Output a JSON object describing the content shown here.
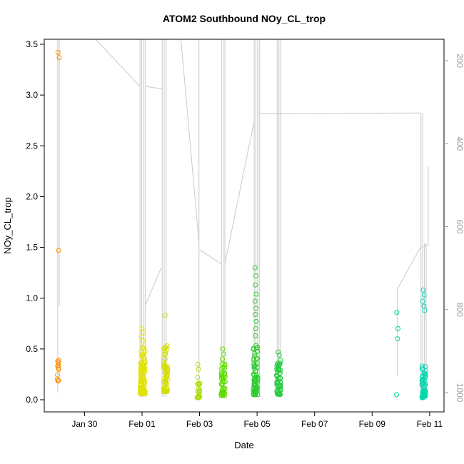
{
  "chart_data": {
    "type": "scatter",
    "title": "ATOM2 Southbound NOy_CL_trop",
    "xlabel": "Date",
    "ylabel": "NOy_CL_trop",
    "x_axis": {
      "tick_labels": [
        "Jan 30",
        "Feb 01",
        "Feb 03",
        "Feb 05",
        "Feb 07",
        "Feb 09",
        "Feb 11"
      ],
      "tick_positions_days": [
        1,
        3,
        5,
        7,
        9,
        11,
        13
      ],
      "domain_days": [
        -0.4,
        13.5
      ],
      "day_zero": "Jan 29"
    },
    "y_axis": {
      "tick_labels": [
        "0.0",
        "0.5",
        "1.0",
        "1.5",
        "2.0",
        "2.5",
        "3.0",
        "3.5"
      ],
      "tick_values": [
        0,
        0.5,
        1,
        1.5,
        2,
        2.5,
        3,
        3.5
      ]
    },
    "y2_axis": {
      "tick_labels": [
        "200",
        "400",
        "600",
        "800",
        "1000"
      ],
      "tick_values": [
        200,
        400,
        600,
        800,
        1000
      ],
      "reversed": true,
      "color": "#9e9e9e"
    },
    "pressure_trace": {
      "color": "#c9c9c9",
      "lines": [
        [
          [
            0.07,
            150
          ],
          [
            0.07,
            1000
          ]
        ],
        [
          [
            0.12,
            150
          ],
          [
            0.12,
            790
          ]
        ],
        [
          [
            1.35,
            146
          ],
          [
            2.93,
            262
          ]
        ],
        [
          [
            2.93,
            146
          ],
          [
            2.93,
            1010
          ]
        ],
        [
          [
            2.99,
            146
          ],
          [
            2.99,
            1010
          ]
        ],
        [
          [
            3.05,
            146
          ],
          [
            3.05,
            1010
          ]
        ],
        [
          [
            3.11,
            146
          ],
          [
            3.11,
            1010
          ]
        ],
        [
          [
            3.11,
            262
          ],
          [
            3.7,
            268
          ]
        ],
        [
          [
            3.11,
            790
          ],
          [
            3.66,
            700
          ]
        ],
        [
          [
            3.7,
            146
          ],
          [
            3.7,
            1010
          ]
        ],
        [
          [
            3.77,
            146
          ],
          [
            3.77,
            1010
          ]
        ],
        [
          [
            3.84,
            146
          ],
          [
            3.84,
            1010
          ]
        ],
        [
          [
            4.35,
            146
          ],
          [
            4.98,
            640
          ]
        ],
        [
          [
            4.98,
            146
          ],
          [
            4.98,
            1010
          ]
        ],
        [
          [
            4.98,
            655
          ],
          [
            5.76,
            690
          ]
        ],
        [
          [
            5.76,
            146
          ],
          [
            5.76,
            1010
          ]
        ],
        [
          [
            5.82,
            146
          ],
          [
            5.82,
            1010
          ]
        ],
        [
          [
            5.88,
            146
          ],
          [
            5.88,
            1010
          ]
        ],
        [
          [
            5.88,
            690
          ],
          [
            6.9,
            345
          ]
        ],
        [
          [
            6.9,
            146
          ],
          [
            6.9,
            1010
          ]
        ],
        [
          [
            6.96,
            146
          ],
          [
            6.96,
            1010
          ]
        ],
        [
          [
            7.02,
            146
          ],
          [
            7.02,
            1010
          ]
        ],
        [
          [
            7.08,
            146
          ],
          [
            7.08,
            1010
          ]
        ],
        [
          [
            7.1,
            328
          ],
          [
            12.7,
            326
          ]
        ],
        [
          [
            7.7,
            146
          ],
          [
            7.7,
            1010
          ]
        ],
        [
          [
            7.76,
            146
          ],
          [
            7.76,
            1010
          ]
        ],
        [
          [
            7.82,
            146
          ],
          [
            7.82,
            1010
          ]
        ],
        [
          [
            11.88,
            750
          ],
          [
            11.88,
            960
          ]
        ],
        [
          [
            11.88,
            750
          ],
          [
            12.68,
            650
          ]
        ],
        [
          [
            12.7,
            326
          ],
          [
            12.7,
            1005
          ]
        ],
        [
          [
            12.76,
            326
          ],
          [
            12.76,
            1005
          ]
        ],
        [
          [
            12.82,
            640
          ],
          [
            12.82,
            1005
          ]
        ],
        [
          [
            12.88,
            640
          ],
          [
            12.88,
            1005
          ]
        ],
        [
          [
            12.68,
            650
          ],
          [
            12.95,
            645
          ],
          [
            12.95,
            455
          ]
        ]
      ]
    },
    "scatter": {
      "marker": "open-circle",
      "radius": 3,
      "clusters": [
        {
          "cx": 0.1,
          "xspread": 0.045,
          "count": 10,
          "ymin": 0.18,
          "ymax": 0.4,
          "yexp": 1.4,
          "color": "#FF8C00",
          "seed": 101
        },
        {
          "cx": 3.02,
          "xspread": 0.09,
          "count": 85,
          "ymin": 0.06,
          "ymax": 0.52,
          "yexp": 2.2,
          "color": "#E2E200",
          "seed": 102
        },
        {
          "cx": 3.82,
          "xspread": 0.08,
          "count": 65,
          "ymin": 0.08,
          "ymax": 0.55,
          "yexp": 2.0,
          "color": "#D6DE00",
          "seed": 103
        },
        {
          "cx": 4.95,
          "xspread": 0.06,
          "count": 18,
          "ymin": 0.02,
          "ymax": 0.17,
          "yexp": 1.6,
          "color": "#AADF00",
          "seed": 104
        },
        {
          "cx": 5.82,
          "xspread": 0.07,
          "count": 48,
          "ymin": 0.04,
          "ymax": 0.36,
          "yexp": 2.0,
          "color": "#5FDC00",
          "seed": 105
        },
        {
          "cx": 6.95,
          "xspread": 0.08,
          "count": 80,
          "ymin": 0.05,
          "ymax": 0.55,
          "yexp": 2.2,
          "color": "#2FCC2F",
          "seed": 106
        },
        {
          "cx": 7.75,
          "xspread": 0.07,
          "count": 60,
          "ymin": 0.05,
          "ymax": 0.42,
          "yexp": 2.0,
          "color": "#29CC45",
          "seed": 107
        },
        {
          "cx": 12.8,
          "xspread": 0.07,
          "count": 60,
          "ymin": 0.02,
          "ymax": 0.33,
          "yexp": 2.0,
          "color": "#00D7AD",
          "seed": 108
        }
      ],
      "points": [
        {
          "x": 0.08,
          "y": 3.42,
          "color": "#FF8C00"
        },
        {
          "x": 0.12,
          "y": 3.37,
          "color": "#FF8C00"
        },
        {
          "x": 0.1,
          "y": 1.47,
          "color": "#FF8C00"
        },
        {
          "x": 0.07,
          "y": 0.38,
          "color": "#FF8C00"
        },
        {
          "x": 3.0,
          "y": 0.7,
          "color": "#E2E200"
        },
        {
          "x": 3.04,
          "y": 0.66,
          "color": "#E2E200"
        },
        {
          "x": 2.98,
          "y": 0.62,
          "color": "#E2E200"
        },
        {
          "x": 3.03,
          "y": 0.58,
          "color": "#E2E200"
        },
        {
          "x": 3.8,
          "y": 0.83,
          "color": "#D6DE00"
        },
        {
          "x": 4.94,
          "y": 0.35,
          "color": "#AADF00"
        },
        {
          "x": 4.97,
          "y": 0.3,
          "color": "#AADF00"
        },
        {
          "x": 4.93,
          "y": 0.22,
          "color": "#AADF00"
        },
        {
          "x": 5.8,
          "y": 0.5,
          "color": "#5FDC00"
        },
        {
          "x": 5.84,
          "y": 0.45,
          "color": "#5FDC00"
        },
        {
          "x": 5.79,
          "y": 0.4,
          "color": "#5FDC00"
        },
        {
          "x": 6.93,
          "y": 1.3,
          "color": "#2FCC2F"
        },
        {
          "x": 6.96,
          "y": 1.22,
          "color": "#2FCC2F"
        },
        {
          "x": 6.94,
          "y": 1.13,
          "color": "#2FCC2F"
        },
        {
          "x": 6.97,
          "y": 1.04,
          "color": "#2FCC2F"
        },
        {
          "x": 6.93,
          "y": 0.97,
          "color": "#2FCC2F"
        },
        {
          "x": 6.96,
          "y": 0.9,
          "color": "#2FCC2F"
        },
        {
          "x": 6.94,
          "y": 0.84,
          "color": "#2FCC2F"
        },
        {
          "x": 6.97,
          "y": 0.77,
          "color": "#2FCC2F"
        },
        {
          "x": 6.95,
          "y": 0.7,
          "color": "#2FCC2F"
        },
        {
          "x": 6.94,
          "y": 0.63,
          "color": "#2FCC2F"
        },
        {
          "x": 7.73,
          "y": 0.47,
          "color": "#29CC45"
        },
        {
          "x": 7.77,
          "y": 0.44,
          "color": "#29CC45"
        },
        {
          "x": 11.86,
          "y": 0.86,
          "color": "#00D796"
        },
        {
          "x": 11.9,
          "y": 0.7,
          "color": "#00D796"
        },
        {
          "x": 11.88,
          "y": 0.6,
          "color": "#00D796"
        },
        {
          "x": 11.85,
          "y": 0.05,
          "color": "#00D796"
        },
        {
          "x": 12.78,
          "y": 1.08,
          "color": "#00D7AD"
        },
        {
          "x": 12.81,
          "y": 1.03,
          "color": "#00D7AD"
        },
        {
          "x": 12.76,
          "y": 0.97,
          "color": "#00D7AD"
        },
        {
          "x": 12.8,
          "y": 0.92,
          "color": "#00D7AD"
        },
        {
          "x": 12.83,
          "y": 0.88,
          "color": "#00D7AD"
        }
      ]
    }
  }
}
